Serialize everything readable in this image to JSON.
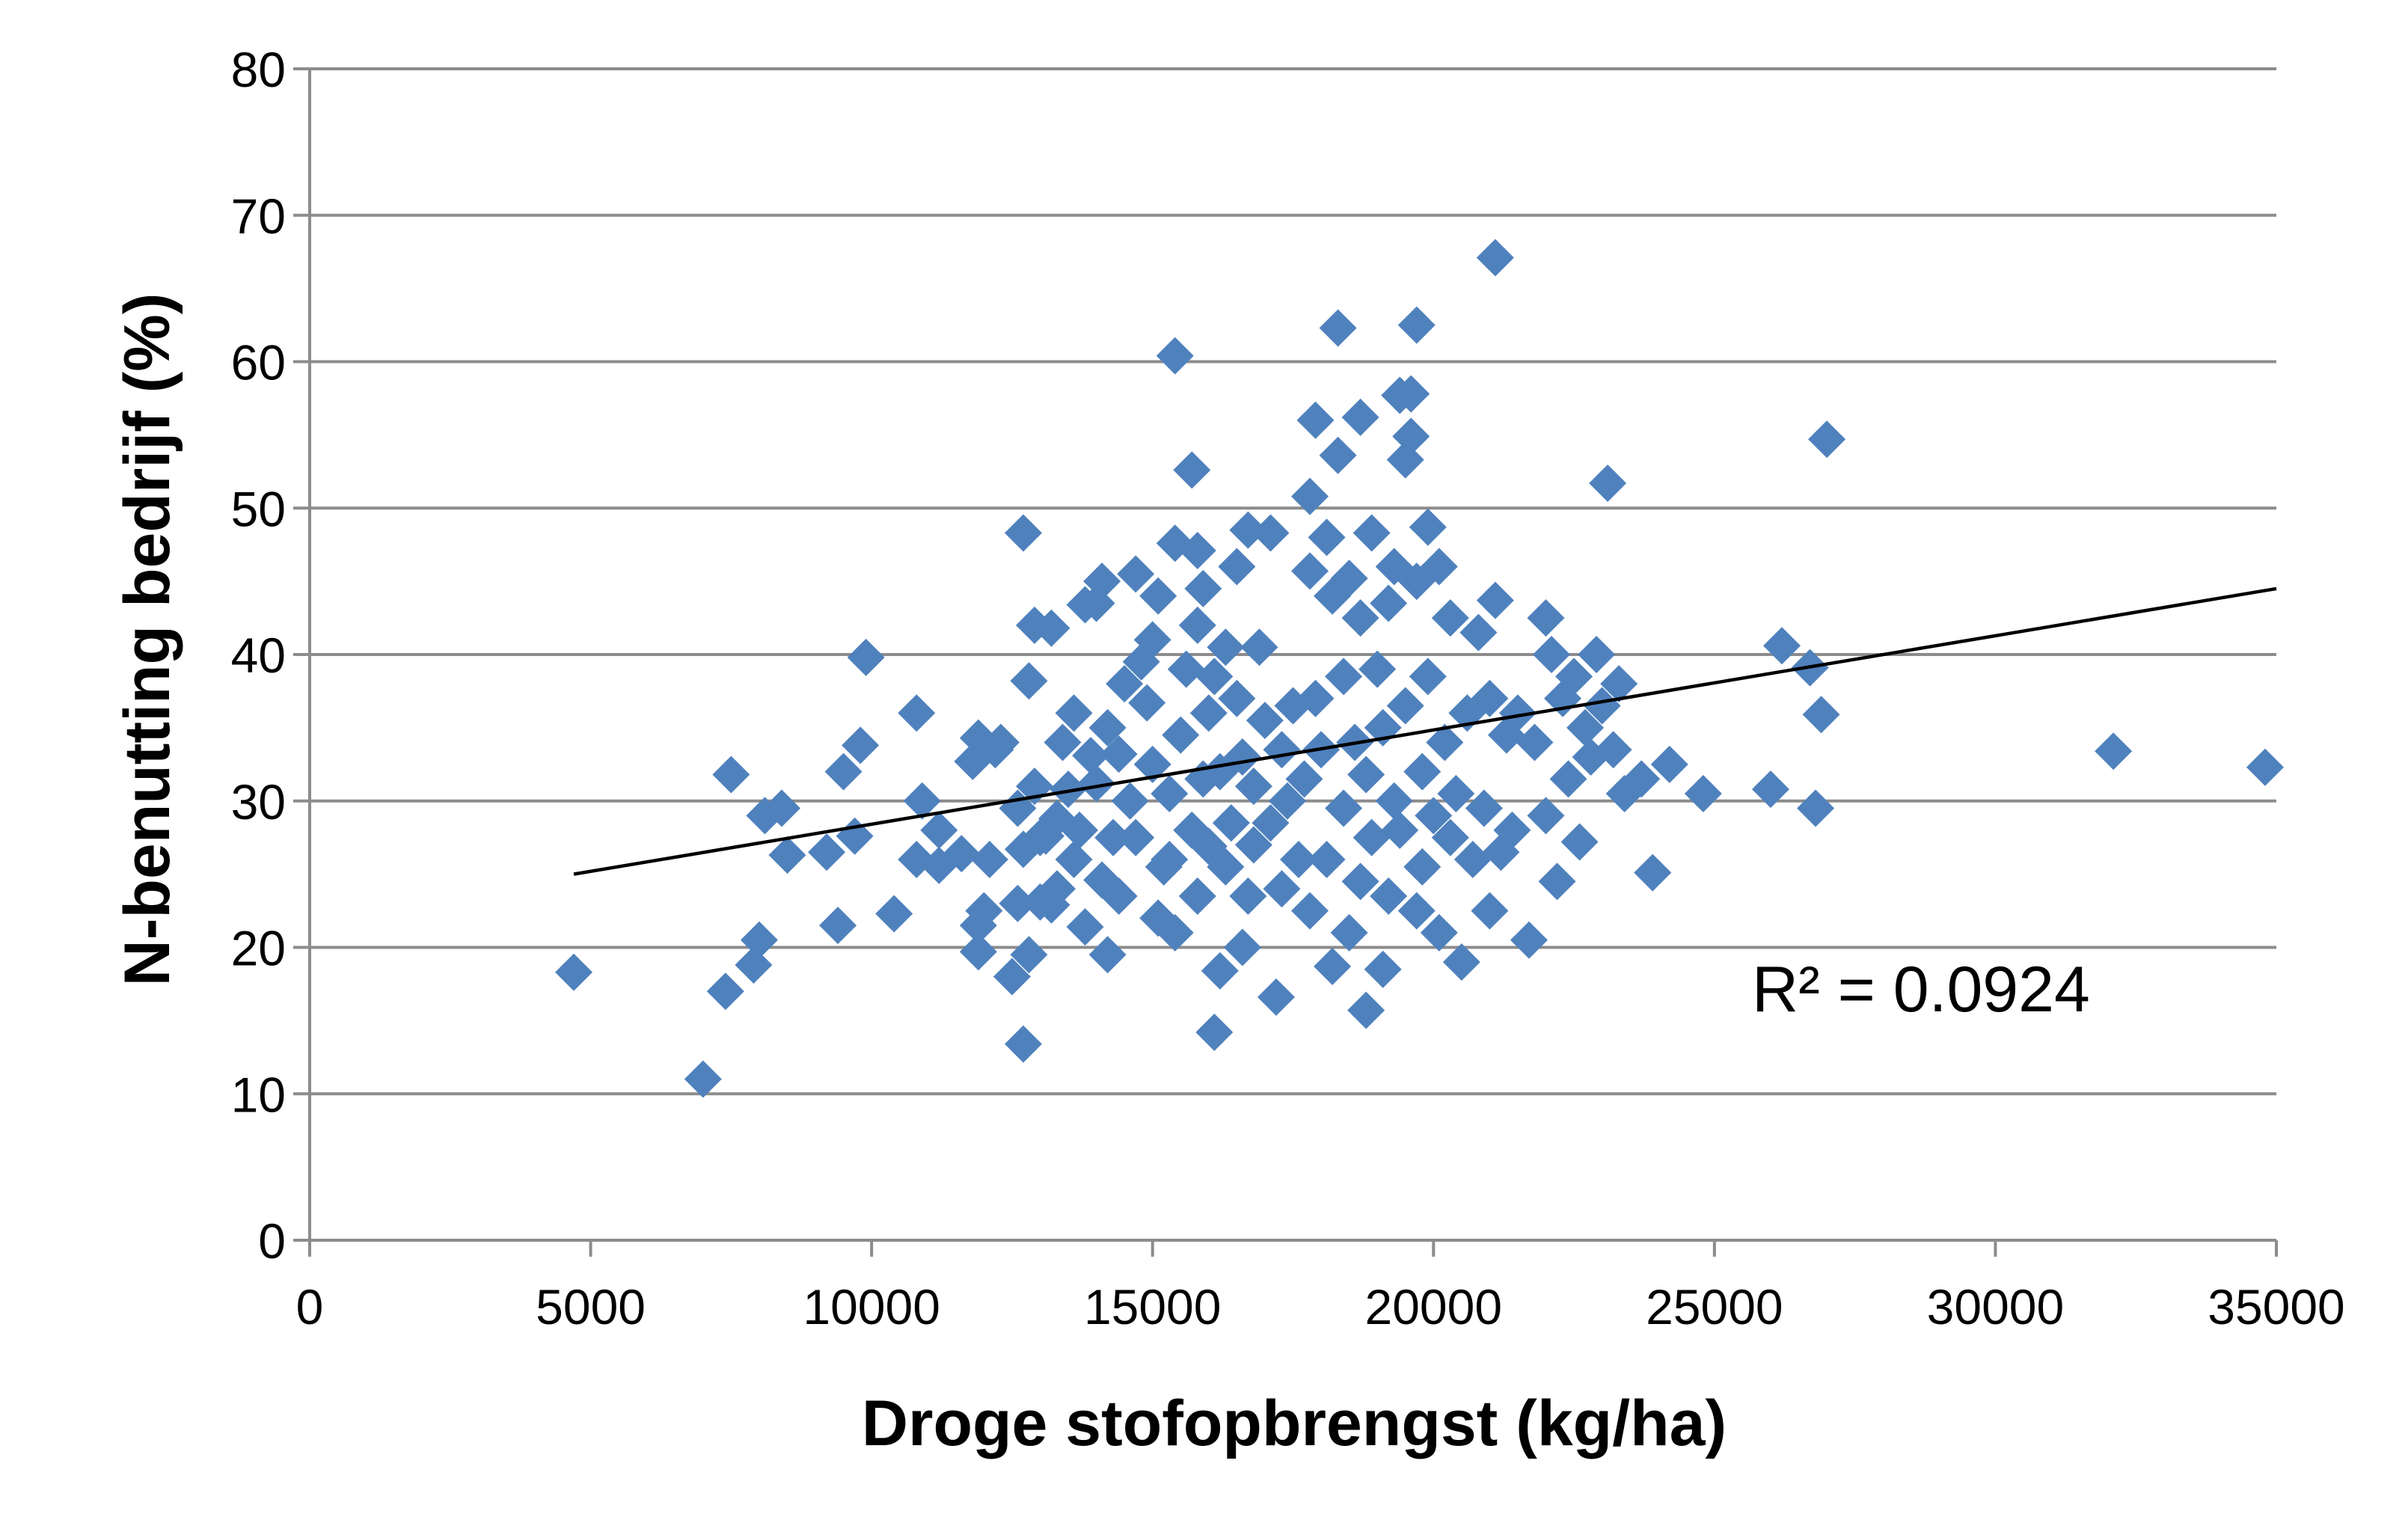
{
  "chart_data": {
    "type": "scatter",
    "title": "",
    "xlabel": "Droge stofopbrengst (kg/ha)",
    "ylabel": "N-benutting bedrijf (%)",
    "xlim": [
      0,
      35000
    ],
    "ylim": [
      0,
      80
    ],
    "x_ticks": [
      0,
      5000,
      10000,
      15000,
      20000,
      25000,
      30000,
      35000
    ],
    "y_ticks": [
      0,
      10,
      20,
      30,
      40,
      50,
      60,
      70,
      80
    ],
    "x_tick_labels": [
      "0",
      "5000",
      "10000",
      "15000",
      "20000",
      "25000",
      "30000",
      "35000"
    ],
    "y_tick_labels": [
      "0",
      "10",
      "20",
      "30",
      "40",
      "50",
      "60",
      "70",
      "80"
    ],
    "grid": "horizontal",
    "legend": "none",
    "marker": "diamond",
    "marker_color": "#4f81bd",
    "trendline_color": "#000000",
    "trendline": {
      "x": [
        4700,
        35000
      ],
      "y": [
        25.0,
        44.5
      ]
    },
    "annotation": "R² = 0.0924",
    "series": [
      {
        "points": [
          [
            4700,
            18.3
          ],
          [
            7000,
            11
          ],
          [
            7400,
            17
          ],
          [
            7500,
            31.8
          ],
          [
            7900,
            18.8
          ],
          [
            8000,
            20.5
          ],
          [
            8100,
            29
          ],
          [
            8400,
            29.5
          ],
          [
            8500,
            26.3
          ],
          [
            9200,
            26.5
          ],
          [
            9400,
            21.5
          ],
          [
            9500,
            32
          ],
          [
            9700,
            27.6
          ],
          [
            9800,
            33.8
          ],
          [
            9900,
            39.8
          ],
          [
            10400,
            22.3
          ],
          [
            10800,
            36
          ],
          [
            10800,
            26
          ],
          [
            10900,
            30
          ],
          [
            11200,
            25.6
          ],
          [
            11200,
            28
          ],
          [
            11600,
            26.4
          ],
          [
            11800,
            32.7
          ],
          [
            11900,
            19.7
          ],
          [
            11900,
            21.5
          ],
          [
            11900,
            34.3
          ],
          [
            12000,
            22.5
          ],
          [
            12100,
            26
          ],
          [
            12200,
            33.5
          ],
          [
            12300,
            34
          ],
          [
            12500,
            18
          ],
          [
            12600,
            23
          ],
          [
            12600,
            29.5
          ],
          [
            12700,
            48.3
          ],
          [
            12700,
            13.4
          ],
          [
            12700,
            26.7
          ],
          [
            12800,
            19.5
          ],
          [
            12800,
            38.2
          ],
          [
            12900,
            42
          ],
          [
            12900,
            31
          ],
          [
            13000,
            23.1
          ],
          [
            13000,
            27.5
          ],
          [
            13100,
            27.6
          ],
          [
            13200,
            41.8
          ],
          [
            13200,
            22.9
          ],
          [
            13300,
            24
          ],
          [
            13300,
            28.8
          ],
          [
            13400,
            34
          ],
          [
            13500,
            30.8
          ],
          [
            13600,
            36
          ],
          [
            13600,
            26
          ],
          [
            13700,
            28
          ],
          [
            13800,
            43.4
          ],
          [
            13800,
            21.4
          ],
          [
            13900,
            33.1
          ],
          [
            14000,
            43.5
          ],
          [
            14000,
            31.2
          ],
          [
            14100,
            45
          ],
          [
            14100,
            24.6
          ],
          [
            14200,
            19.5
          ],
          [
            14200,
            35
          ],
          [
            14300,
            27.5
          ],
          [
            14400,
            23.5
          ],
          [
            14400,
            33.2
          ],
          [
            14500,
            38
          ],
          [
            14600,
            30
          ],
          [
            14700,
            45.5
          ],
          [
            14700,
            27.5
          ],
          [
            14800,
            39.5
          ],
          [
            14900,
            36.7
          ],
          [
            15000,
            41
          ],
          [
            15000,
            32.5
          ],
          [
            15100,
            44
          ],
          [
            15100,
            22
          ],
          [
            15200,
            25.5
          ],
          [
            15300,
            26
          ],
          [
            15300,
            30.5
          ],
          [
            15400,
            60.4
          ],
          [
            15400,
            47.6
          ],
          [
            15400,
            21
          ],
          [
            15500,
            34.5
          ],
          [
            15600,
            39
          ],
          [
            15700,
            52.6
          ],
          [
            15700,
            28
          ],
          [
            15800,
            47.1
          ],
          [
            15800,
            42
          ],
          [
            15800,
            23.5
          ],
          [
            15900,
            44.5
          ],
          [
            15900,
            31.5
          ],
          [
            16000,
            36
          ],
          [
            16000,
            26.9
          ],
          [
            16100,
            38.5
          ],
          [
            16100,
            14.2
          ],
          [
            16200,
            18.4
          ],
          [
            16200,
            32
          ],
          [
            16300,
            40.5
          ],
          [
            16300,
            25.5
          ],
          [
            16400,
            28.5
          ],
          [
            16500,
            46
          ],
          [
            16500,
            37
          ],
          [
            16600,
            20
          ],
          [
            16600,
            33
          ],
          [
            16700,
            48.5
          ],
          [
            16700,
            23.5
          ],
          [
            16800,
            31
          ],
          [
            16800,
            27
          ],
          [
            16900,
            40.5
          ],
          [
            17000,
            35.5
          ],
          [
            17100,
            48.3
          ],
          [
            17100,
            28.5
          ],
          [
            17200,
            16.6
          ],
          [
            17300,
            24
          ],
          [
            17300,
            33.5
          ],
          [
            17400,
            30
          ],
          [
            17500,
            36.5
          ],
          [
            17600,
            26
          ],
          [
            17700,
            31.5
          ],
          [
            17800,
            50.8
          ],
          [
            17800,
            45.7
          ],
          [
            17800,
            22.5
          ],
          [
            17900,
            56
          ],
          [
            17900,
            37
          ],
          [
            18000,
            33.5
          ],
          [
            18100,
            48
          ],
          [
            18100,
            26
          ],
          [
            18200,
            18.7
          ],
          [
            18200,
            44
          ],
          [
            18300,
            53.6
          ],
          [
            18300,
            62.3
          ],
          [
            18400,
            38.5
          ],
          [
            18400,
            29.5
          ],
          [
            18500,
            45.2
          ],
          [
            18500,
            21
          ],
          [
            18600,
            34
          ],
          [
            18700,
            56.2
          ],
          [
            18700,
            42.5
          ],
          [
            18700,
            24.5
          ],
          [
            18800,
            15.7
          ],
          [
            18800,
            31.8
          ],
          [
            18900,
            48.3
          ],
          [
            18900,
            27.5
          ],
          [
            19000,
            39
          ],
          [
            19100,
            18.5
          ],
          [
            19100,
            35
          ],
          [
            19200,
            43.5
          ],
          [
            19200,
            23.5
          ],
          [
            19300,
            46
          ],
          [
            19300,
            30
          ],
          [
            19400,
            57.7
          ],
          [
            19400,
            28
          ],
          [
            19500,
            53.3
          ],
          [
            19500,
            36.5
          ],
          [
            19600,
            54.9
          ],
          [
            19600,
            57.8
          ],
          [
            19700,
            62.5
          ],
          [
            19700,
            45
          ],
          [
            19700,
            22.5
          ],
          [
            19800,
            25.5
          ],
          [
            19800,
            32
          ],
          [
            19900,
            48.7
          ],
          [
            19900,
            38.5
          ],
          [
            20000,
            29
          ],
          [
            20100,
            46
          ],
          [
            20100,
            21
          ],
          [
            20200,
            34
          ],
          [
            20300,
            42.5
          ],
          [
            20300,
            27.5
          ],
          [
            20400,
            30.5
          ],
          [
            20500,
            19
          ],
          [
            20600,
            36
          ],
          [
            20700,
            26
          ],
          [
            20800,
            41.5
          ],
          [
            20900,
            29.5
          ],
          [
            21000,
            22.5
          ],
          [
            21000,
            37
          ],
          [
            21100,
            67.1
          ],
          [
            21100,
            43.7
          ],
          [
            21200,
            26.5
          ],
          [
            21300,
            34.5
          ],
          [
            21400,
            28
          ],
          [
            21500,
            36
          ],
          [
            21700,
            20.5
          ],
          [
            21800,
            34
          ],
          [
            22000,
            29
          ],
          [
            22000,
            42.5
          ],
          [
            22100,
            40
          ],
          [
            22200,
            24.5
          ],
          [
            22300,
            37
          ],
          [
            22400,
            31.5
          ],
          [
            22500,
            38.5
          ],
          [
            22600,
            27.2
          ],
          [
            22700,
            35
          ],
          [
            22800,
            33
          ],
          [
            22900,
            40
          ],
          [
            23000,
            36.5
          ],
          [
            23100,
            51.7
          ],
          [
            23200,
            33.5
          ],
          [
            23300,
            38
          ],
          [
            23400,
            30.5
          ],
          [
            23700,
            31.5
          ],
          [
            23900,
            25.1
          ],
          [
            24200,
            32.5
          ],
          [
            24800,
            30.5
          ],
          [
            26000,
            30.8
          ],
          [
            26200,
            40.6
          ],
          [
            26700,
            39.1
          ],
          [
            26800,
            29.5
          ],
          [
            26900,
            35.9
          ],
          [
            27000,
            54.7
          ],
          [
            32100,
            33.4
          ],
          [
            34800,
            32.3
          ]
        ]
      }
    ]
  }
}
